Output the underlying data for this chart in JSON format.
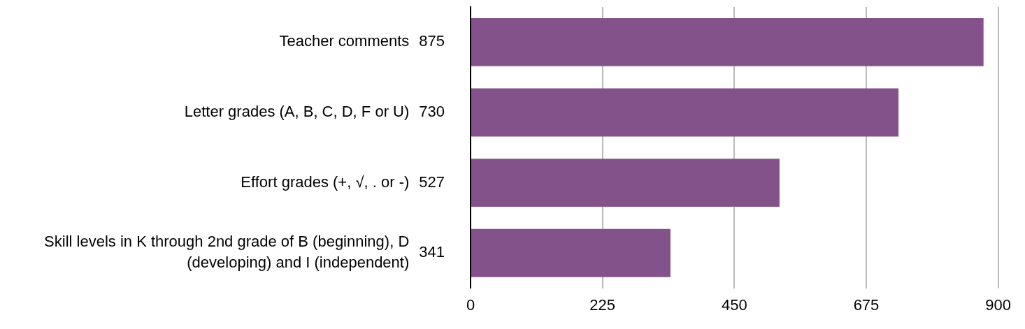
{
  "chart_data": {
    "type": "bar",
    "orientation": "horizontal",
    "categories": [
      "Teacher comments",
      "Letter grades (A, B, C, D, F or U)",
      "Effort grades (+, √, . or -)",
      "Skill levels in K through 2nd grade of B (beginning), D (developing) and I (independent)"
    ],
    "values": [
      875,
      730,
      527,
      341
    ],
    "color": "#84528a",
    "xlim": [
      0,
      900
    ],
    "xticks": [
      0,
      225,
      450,
      675,
      900
    ],
    "grid": "x",
    "data_labels": true
  }
}
